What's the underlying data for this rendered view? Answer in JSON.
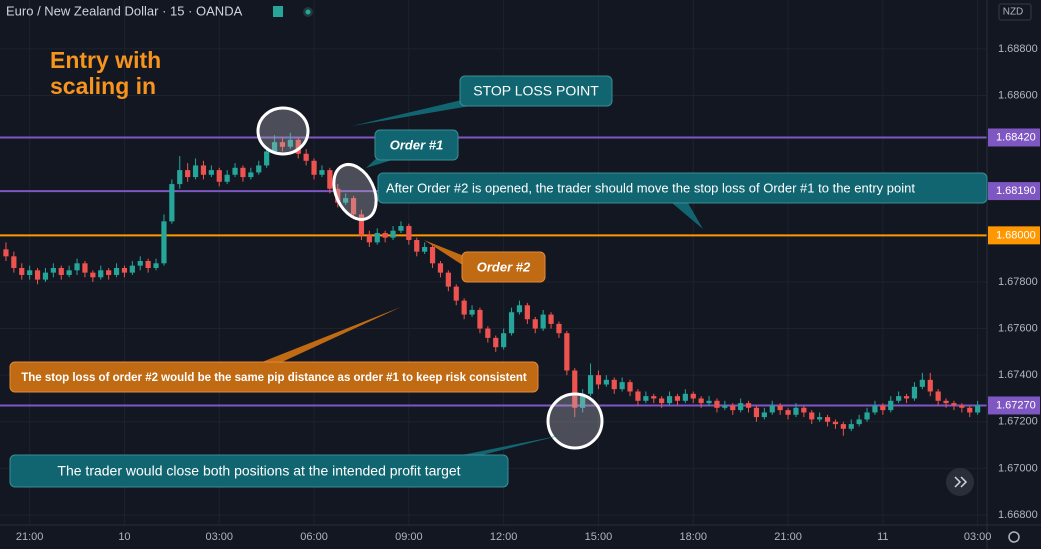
{
  "chart_data": {
    "type": "candlestick",
    "title": "Euro / New Zealand Dollar · 15 · OANDA",
    "currency": "NZD",
    "headline": [
      "Entry with",
      "scaling in"
    ],
    "up_color": "#26a69a",
    "down_color": "#ef5350",
    "grid": true,
    "ylim": [
      1.66757,
      1.6901
    ],
    "yticks": [
      {
        "value": 1.688,
        "label": "1.68800"
      },
      {
        "value": 1.686,
        "label": "1.68600"
      },
      {
        "value": 1.678,
        "label": "1.67800"
      },
      {
        "value": 1.676,
        "label": "1.67600"
      },
      {
        "value": 1.674,
        "label": "1.67400"
      },
      {
        "value": 1.672,
        "label": "1.67200"
      },
      {
        "value": 1.67,
        "label": "1.67000"
      },
      {
        "value": 1.668,
        "label": "1.66800"
      }
    ],
    "levels": [
      {
        "value": 1.6842,
        "label": "1.68420",
        "color": "#7e57c2"
      },
      {
        "value": 1.6819,
        "label": "1.68190",
        "color": "#7e57c2"
      },
      {
        "value": 1.68,
        "label": "1.68000",
        "color": "#ff9800"
      },
      {
        "value": 1.6727,
        "label": "1.67270",
        "color": "#7e57c2"
      }
    ],
    "annotations": [
      "STOP LOSS POINT",
      "Order #1",
      "After Order #2 is opened, the trader should move the stop loss of Order #1 to the entry point",
      "Order #2",
      "The stop loss of order #2 would be the same pip distance as order #1 to keep risk consistent",
      "The trader would close both positions at the intended profit target"
    ],
    "categories": [
      null,
      null,
      null,
      "21:00",
      null,
      null,
      null,
      null,
      null,
      null,
      null,
      null,
      null,
      null,
      null,
      "10",
      null,
      null,
      null,
      null,
      null,
      null,
      null,
      null,
      null,
      null,
      null,
      "03:00",
      null,
      null,
      null,
      null,
      null,
      null,
      null,
      null,
      null,
      null,
      null,
      "06:00",
      null,
      null,
      null,
      null,
      null,
      null,
      null,
      null,
      null,
      null,
      null,
      "09:00",
      null,
      null,
      null,
      null,
      null,
      null,
      null,
      null,
      null,
      null,
      null,
      "12:00",
      null,
      null,
      null,
      null,
      null,
      null,
      null,
      null,
      null,
      null,
      null,
      "15:00",
      null,
      null,
      null,
      null,
      null,
      null,
      null,
      null,
      null,
      null,
      null,
      "18:00",
      null,
      null,
      null,
      null,
      null,
      null,
      null,
      null,
      null,
      null,
      null,
      "21:00",
      null,
      null,
      null,
      null,
      null,
      null,
      null,
      null,
      null,
      null,
      null,
      "11",
      null,
      null,
      null,
      null,
      null,
      null,
      null,
      null,
      null,
      null,
      null,
      "03:00"
    ],
    "ohlc": [
      [
        1.6794,
        1.6797,
        1.6789,
        1.6791
      ],
      [
        1.6791,
        1.6793,
        1.6784,
        1.6786
      ],
      [
        1.6786,
        1.6788,
        1.6781,
        1.6783
      ],
      [
        1.6783,
        1.6787,
        1.6781,
        1.6785
      ],
      [
        1.6785,
        1.6786,
        1.6779,
        1.6781
      ],
      [
        1.6781,
        1.6786,
        1.678,
        1.6784
      ],
      [
        1.6784,
        1.6788,
        1.6782,
        1.6786
      ],
      [
        1.6786,
        1.6787,
        1.6781,
        1.6783
      ],
      [
        1.6783,
        1.6787,
        1.6782,
        1.6785
      ],
      [
        1.6785,
        1.679,
        1.6783,
        1.6788
      ],
      [
        1.6788,
        1.6789,
        1.6782,
        1.6784
      ],
      [
        1.6784,
        1.6785,
        1.678,
        1.6782
      ],
      [
        1.6782,
        1.6787,
        1.6781,
        1.6785
      ],
      [
        1.6785,
        1.6786,
        1.6781,
        1.6783
      ],
      [
        1.6783,
        1.6788,
        1.6782,
        1.6786
      ],
      [
        1.6786,
        1.6787,
        1.6782,
        1.6784
      ],
      [
        1.6784,
        1.6789,
        1.6783,
        1.6787
      ],
      [
        1.6787,
        1.6791,
        1.6785,
        1.6789
      ],
      [
        1.6789,
        1.679,
        1.6784,
        1.6786
      ],
      [
        1.6786,
        1.679,
        1.6785,
        1.6788
      ],
      [
        1.6788,
        1.6809,
        1.6787,
        1.6806
      ],
      [
        1.6806,
        1.6824,
        1.6805,
        1.6822
      ],
      [
        1.6822,
        1.6834,
        1.682,
        1.6828
      ],
      [
        1.6828,
        1.6831,
        1.6823,
        1.6825
      ],
      [
        1.6825,
        1.6833,
        1.6824,
        1.683
      ],
      [
        1.683,
        1.6832,
        1.6824,
        1.6826
      ],
      [
        1.6826,
        1.683,
        1.6825,
        1.6828
      ],
      [
        1.6828,
        1.6829,
        1.6821,
        1.6823
      ],
      [
        1.6823,
        1.6828,
        1.6822,
        1.6826
      ],
      [
        1.6826,
        1.6831,
        1.6825,
        1.6829
      ],
      [
        1.6829,
        1.683,
        1.6823,
        1.6825
      ],
      [
        1.6825,
        1.6829,
        1.6824,
        1.6827
      ],
      [
        1.6827,
        1.6832,
        1.6826,
        1.683
      ],
      [
        1.683,
        1.6838,
        1.6829,
        1.6836
      ],
      [
        1.6836,
        1.6843,
        1.6835,
        1.684
      ],
      [
        1.684,
        1.6842,
        1.6836,
        1.6838
      ],
      [
        1.6838,
        1.6844,
        1.6837,
        1.6841
      ],
      [
        1.6841,
        1.6842,
        1.6833,
        1.6835
      ],
      [
        1.6835,
        1.6837,
        1.683,
        1.6832
      ],
      [
        1.6832,
        1.6833,
        1.6824,
        1.6826
      ],
      [
        1.6826,
        1.683,
        1.6825,
        1.6828
      ],
      [
        1.6828,
        1.6829,
        1.6818,
        1.682
      ],
      [
        1.682,
        1.6822,
        1.6812,
        1.6814
      ],
      [
        1.6814,
        1.6818,
        1.6813,
        1.6816
      ],
      [
        1.6816,
        1.6817,
        1.6807,
        1.6809
      ],
      [
        1.6809,
        1.6811,
        1.6798,
        1.68
      ],
      [
        1.68,
        1.6802,
        1.6795,
        1.6797
      ],
      [
        1.6797,
        1.6803,
        1.6796,
        1.6801
      ],
      [
        1.6801,
        1.6802,
        1.6797,
        1.6799
      ],
      [
        1.6799,
        1.6804,
        1.6798,
        1.6802
      ],
      [
        1.6802,
        1.6806,
        1.6801,
        1.6804
      ],
      [
        1.6804,
        1.6805,
        1.6796,
        1.6798
      ],
      [
        1.6798,
        1.6799,
        1.6791,
        1.6793
      ],
      [
        1.6793,
        1.6797,
        1.6792,
        1.6795
      ],
      [
        1.6795,
        1.6796,
        1.6786,
        1.6788
      ],
      [
        1.6788,
        1.6789,
        1.6782,
        1.6784
      ],
      [
        1.6784,
        1.6785,
        1.6776,
        1.6778
      ],
      [
        1.6778,
        1.6779,
        1.677,
        1.6772
      ],
      [
        1.6772,
        1.6773,
        1.6764,
        1.6766
      ],
      [
        1.6766,
        1.677,
        1.6765,
        1.6768
      ],
      [
        1.6768,
        1.6769,
        1.6758,
        1.676
      ],
      [
        1.676,
        1.6761,
        1.6754,
        1.6756
      ],
      [
        1.6756,
        1.6757,
        1.675,
        1.6752
      ],
      [
        1.6752,
        1.676,
        1.6751,
        1.6758
      ],
      [
        1.6758,
        1.6769,
        1.6757,
        1.6767
      ],
      [
        1.6767,
        1.6772,
        1.6766,
        1.677
      ],
      [
        1.677,
        1.6771,
        1.6762,
        1.6764
      ],
      [
        1.6764,
        1.6765,
        1.6758,
        1.676
      ],
      [
        1.676,
        1.6768,
        1.6759,
        1.6766
      ],
      [
        1.6766,
        1.6767,
        1.676,
        1.6762
      ],
      [
        1.6762,
        1.6763,
        1.6756,
        1.6758
      ],
      [
        1.6758,
        1.6759,
        1.674,
        1.6742
      ],
      [
        1.6742,
        1.6743,
        1.6722,
        1.6726
      ],
      [
        1.6726,
        1.6734,
        1.6724,
        1.6732
      ],
      [
        1.6732,
        1.6745,
        1.6731,
        1.674
      ],
      [
        1.674,
        1.6742,
        1.6734,
        1.6736
      ],
      [
        1.6736,
        1.674,
        1.6735,
        1.6738
      ],
      [
        1.6738,
        1.6739,
        1.6732,
        1.6734
      ],
      [
        1.6734,
        1.6739,
        1.6733,
        1.6737
      ],
      [
        1.6737,
        1.6738,
        1.6731,
        1.6733
      ],
      [
        1.6733,
        1.6734,
        1.6727,
        1.6729
      ],
      [
        1.6729,
        1.6733,
        1.6728,
        1.6731
      ],
      [
        1.6731,
        1.6732,
        1.6728,
        1.673
      ],
      [
        1.673,
        1.6731,
        1.6726,
        1.6728
      ],
      [
        1.6728,
        1.6733,
        1.6727,
        1.6731
      ],
      [
        1.6731,
        1.6732,
        1.6727,
        1.6729
      ],
      [
        1.6729,
        1.6734,
        1.6728,
        1.6732
      ],
      [
        1.6732,
        1.6733,
        1.6728,
        1.673
      ],
      [
        1.673,
        1.6731,
        1.6726,
        1.6728
      ],
      [
        1.6728,
        1.6731,
        1.6727,
        1.6729
      ],
      [
        1.6729,
        1.673,
        1.6724,
        1.6726
      ],
      [
        1.6726,
        1.6729,
        1.6725,
        1.6727
      ],
      [
        1.6727,
        1.6728,
        1.6723,
        1.6725
      ],
      [
        1.6725,
        1.673,
        1.6724,
        1.6728
      ],
      [
        1.6728,
        1.6729,
        1.6724,
        1.6726
      ],
      [
        1.6726,
        1.6727,
        1.672,
        1.6722
      ],
      [
        1.6722,
        1.6726,
        1.6721,
        1.6724
      ],
      [
        1.6724,
        1.6729,
        1.6723,
        1.6727
      ],
      [
        1.6727,
        1.6728,
        1.6723,
        1.6725
      ],
      [
        1.6725,
        1.6726,
        1.6721,
        1.6723
      ],
      [
        1.6723,
        1.6728,
        1.6722,
        1.6726
      ],
      [
        1.6726,
        1.6727,
        1.6722,
        1.6724
      ],
      [
        1.6724,
        1.6725,
        1.6719,
        1.6721
      ],
      [
        1.6721,
        1.6724,
        1.672,
        1.6722
      ],
      [
        1.6722,
        1.6723,
        1.6718,
        1.672
      ],
      [
        1.672,
        1.6721,
        1.6717,
        1.6719
      ],
      [
        1.6719,
        1.672,
        1.6714,
        1.6717
      ],
      [
        1.6717,
        1.6721,
        1.6716,
        1.6719
      ],
      [
        1.6719,
        1.6723,
        1.6718,
        1.6721
      ],
      [
        1.6721,
        1.6726,
        1.672,
        1.6724
      ],
      [
        1.6724,
        1.6729,
        1.6723,
        1.6727
      ],
      [
        1.6727,
        1.6728,
        1.6723,
        1.6725
      ],
      [
        1.6725,
        1.6731,
        1.6724,
        1.6729
      ],
      [
        1.6729,
        1.6733,
        1.6728,
        1.6731
      ],
      [
        1.6731,
        1.6732,
        1.6728,
        1.673
      ],
      [
        1.673,
        1.6737,
        1.6729,
        1.6735
      ],
      [
        1.6735,
        1.6741,
        1.6734,
        1.6738
      ],
      [
        1.6738,
        1.6741,
        1.6731,
        1.6733
      ],
      [
        1.6733,
        1.6734,
        1.6727,
        1.6729
      ],
      [
        1.6729,
        1.673,
        1.6726,
        1.6728
      ],
      [
        1.6728,
        1.6729,
        1.6725,
        1.6727
      ],
      [
        1.6727,
        1.6728,
        1.6724,
        1.6726
      ],
      [
        1.6726,
        1.6727,
        1.6722,
        1.6724
      ],
      [
        1.6724,
        1.6729,
        1.6723,
        1.6727
      ]
    ]
  }
}
